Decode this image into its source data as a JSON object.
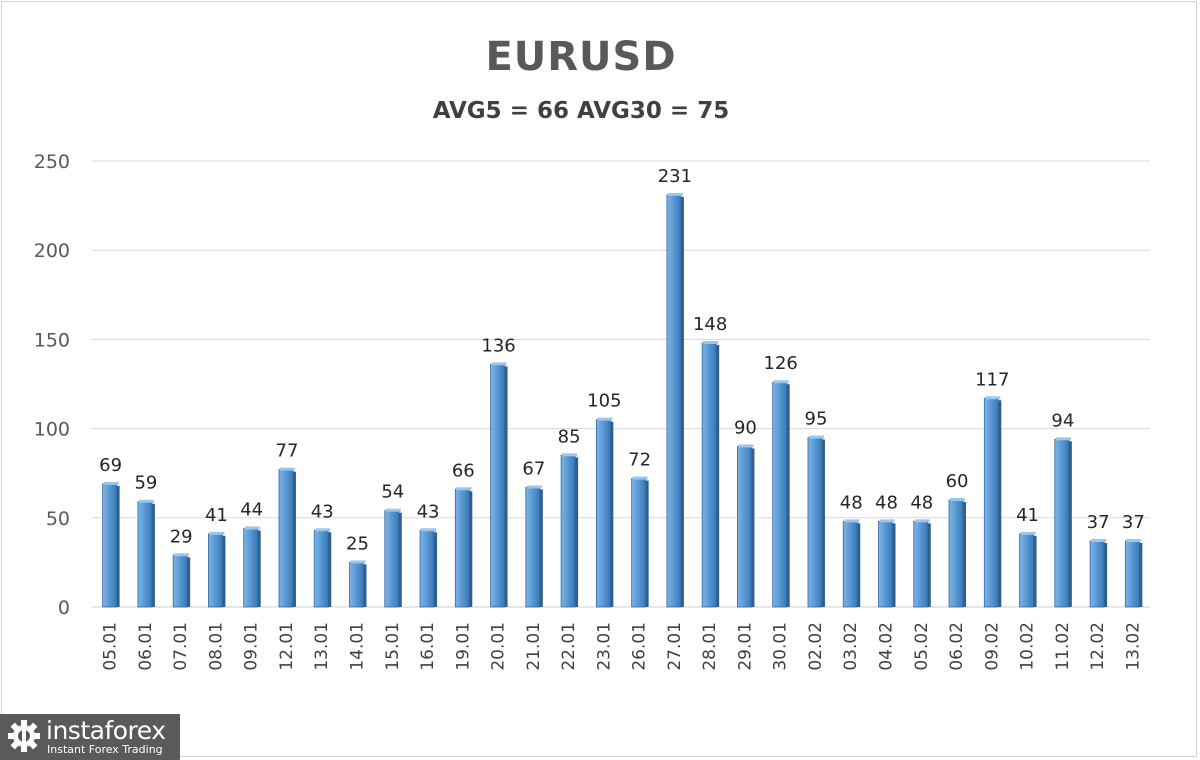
{
  "chart_data": {
    "type": "bar",
    "title": "EURUSD",
    "subtitle": "AVG5 = 66 AVG30 = 75",
    "xlabel": "",
    "ylabel": "",
    "ylim": [
      0,
      250
    ],
    "yticks": [
      0,
      50,
      100,
      150,
      200,
      250
    ],
    "grid": true,
    "legend": "none",
    "bar_color": "#5b9bd5",
    "categories": [
      "05.01",
      "06.01",
      "07.01",
      "08.01",
      "09.01",
      "12.01",
      "13.01",
      "14.01",
      "15.01",
      "16.01",
      "19.01",
      "20.01",
      "21.01",
      "22.01",
      "23.01",
      "26.01",
      "27.01",
      "28.01",
      "29.01",
      "30.01",
      "02.02",
      "03.02",
      "04.02",
      "05.02",
      "06.02",
      "09.02",
      "10.02",
      "11.02",
      "12.02",
      "13.02"
    ],
    "values": [
      69,
      59,
      29,
      41,
      44,
      77,
      43,
      25,
      54,
      43,
      66,
      136,
      67,
      85,
      105,
      72,
      231,
      148,
      90,
      126,
      95,
      48,
      48,
      48,
      60,
      117,
      41,
      94,
      37,
      37
    ]
  },
  "logo": {
    "name": "instaforex",
    "tagline": "Instant Forex Trading"
  }
}
